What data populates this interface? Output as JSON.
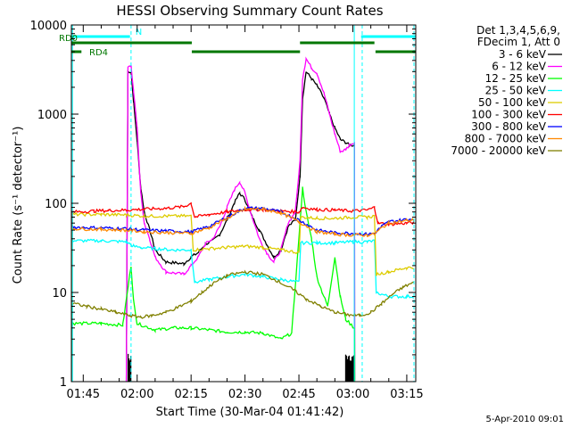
{
  "chart_data": {
    "type": "line",
    "title": "HESSI Observing Summary Count Rates",
    "xlabel": "Start Time (30-Mar-04 01:41:42)",
    "ylabel": "Count Rate (s⁻¹ detector⁻¹)",
    "yscale": "log",
    "ylim": [
      1,
      10000
    ],
    "xlim_minutes": [
      101.7,
      197.5
    ],
    "x_ticks": [
      {
        "label": "01:45",
        "t": 105
      },
      {
        "label": "02:00",
        "t": 120
      },
      {
        "label": "02:15",
        "t": 135
      },
      {
        "label": "02:30",
        "t": 150
      },
      {
        "label": "02:45",
        "t": 165
      },
      {
        "label": "03:00",
        "t": 180
      },
      {
        "label": "03:15",
        "t": 195
      }
    ],
    "y_ticks": [
      "1",
      "10",
      "100",
      "1000",
      "10000"
    ],
    "legend_header": [
      "Det 1,3,4,5,6,9,",
      "FDecim 1, Att 0"
    ],
    "footer_date": "5-Apr-2010 09:01",
    "flags": [
      {
        "label": "N",
        "color": "#00ffff",
        "segments": [
          [
            101.7,
            118.0
          ],
          [
            182.3,
            197.5
          ]
        ]
      },
      {
        "label": "RD0",
        "color": "#007700",
        "segments": [
          [
            101.7,
            135.2
          ],
          [
            165.3,
            186.0
          ]
        ]
      },
      {
        "label": "RD4",
        "color": "#007700",
        "segments": [
          [
            101.7,
            104.5
          ],
          [
            135.2,
            165.3
          ],
          [
            186.3,
            197.5
          ]
        ]
      }
    ],
    "vlines": [
      {
        "t": 102.0,
        "style": "solid"
      },
      {
        "t": 118.3,
        "style": "dashed"
      },
      {
        "t": 180.4,
        "style": "solid"
      },
      {
        "t": 182.6,
        "style": "dashed"
      },
      {
        "t": 197.0,
        "style": "dashed"
      }
    ],
    "series": [
      {
        "name": "3 - 6 keV",
        "color": "#000000",
        "points": [
          [
            117.0,
            0
          ],
          [
            118.3,
            3000
          ],
          [
            119.0,
            1400
          ],
          [
            120.0,
            500
          ],
          [
            121.0,
            150
          ],
          [
            122.0,
            80
          ],
          [
            123.5,
            50
          ],
          [
            125.0,
            30
          ],
          [
            128.0,
            22
          ],
          [
            133.0,
            21
          ],
          [
            135.0,
            25
          ],
          [
            137.0,
            28
          ],
          [
            139.0,
            35
          ],
          [
            141.0,
            38
          ],
          [
            143.0,
            45
          ],
          [
            145.0,
            65
          ],
          [
            147.0,
            100
          ],
          [
            148.5,
            130
          ],
          [
            150.0,
            110
          ],
          [
            152.0,
            70
          ],
          [
            154.0,
            50
          ],
          [
            156.0,
            35
          ],
          [
            158.0,
            25
          ],
          [
            160.0,
            30
          ],
          [
            162.0,
            55
          ],
          [
            164.0,
            65
          ],
          [
            165.3,
            200
          ],
          [
            166.0,
            1500
          ],
          [
            167.0,
            3000
          ],
          [
            168.5,
            2500
          ],
          [
            170.0,
            2100
          ],
          [
            172.0,
            1500
          ],
          [
            173.5,
            1000
          ],
          [
            175.0,
            700
          ],
          [
            176.5,
            520
          ],
          [
            178.0,
            480
          ],
          [
            179.0,
            450
          ],
          [
            180.4,
            450
          ],
          [
            180.5,
            0
          ]
        ]
      },
      {
        "name": "6 - 12 keV",
        "color": "#ff00ff",
        "points": [
          [
            117.0,
            0
          ],
          [
            118.3,
            3500
          ],
          [
            119.0,
            1800
          ],
          [
            120.0,
            700
          ],
          [
            121.0,
            130
          ],
          [
            122.0,
            60
          ],
          [
            123.5,
            40
          ],
          [
            125.0,
            25
          ],
          [
            128.0,
            17
          ],
          [
            133.0,
            16
          ],
          [
            135.0,
            20
          ],
          [
            137.0,
            25
          ],
          [
            139.0,
            35
          ],
          [
            141.0,
            40
          ],
          [
            143.0,
            55
          ],
          [
            145.0,
            90
          ],
          [
            147.0,
            140
          ],
          [
            148.5,
            175
          ],
          [
            150.0,
            130
          ],
          [
            152.0,
            70
          ],
          [
            154.0,
            40
          ],
          [
            156.0,
            28
          ],
          [
            158.0,
            22
          ],
          [
            160.0,
            30
          ],
          [
            162.0,
            60
          ],
          [
            164.0,
            80
          ],
          [
            165.3,
            300
          ],
          [
            166.0,
            2500
          ],
          [
            167.0,
            4200
          ],
          [
            168.5,
            3300
          ],
          [
            170.0,
            2900
          ],
          [
            172.0,
            1700
          ],
          [
            173.5,
            1000
          ],
          [
            175.0,
            600
          ],
          [
            176.5,
            380
          ],
          [
            178.0,
            400
          ],
          [
            179.0,
            450
          ],
          [
            180.4,
            480
          ],
          [
            180.5,
            0
          ]
        ]
      },
      {
        "name": "12 - 25 keV",
        "color": "#00ff00",
        "points": [
          [
            101.7,
            0
          ],
          [
            102.2,
            4.5
          ],
          [
            110.0,
            4.5
          ],
          [
            116.0,
            4.3
          ],
          [
            118.3,
            20
          ],
          [
            119.0,
            8
          ],
          [
            120.0,
            4.5
          ],
          [
            125.0,
            3.8
          ],
          [
            130.0,
            4.0
          ],
          [
            135.0,
            4.0
          ],
          [
            140.0,
            3.8
          ],
          [
            145.0,
            3.6
          ],
          [
            150.0,
            3.6
          ],
          [
            155.0,
            3.5
          ],
          [
            160.0,
            3.0
          ],
          [
            163.0,
            3.5
          ],
          [
            165.3,
            60
          ],
          [
            166.0,
            150
          ],
          [
            167.0,
            80
          ],
          [
            168.5,
            40
          ],
          [
            170.0,
            15
          ],
          [
            171.5,
            10
          ],
          [
            173.0,
            7
          ],
          [
            175.0,
            25
          ],
          [
            176.5,
            9
          ],
          [
            178.0,
            5
          ],
          [
            180.4,
            4
          ],
          [
            180.5,
            0
          ]
        ]
      },
      {
        "name": "25 - 50 keV",
        "color": "#00ffff",
        "points": [
          [
            101.7,
            0
          ],
          [
            102.2,
            38
          ],
          [
            110.0,
            38
          ],
          [
            117.0,
            37
          ],
          [
            119.0,
            33
          ],
          [
            121.0,
            32
          ],
          [
            125.0,
            31
          ],
          [
            130.0,
            30
          ],
          [
            135.0,
            30
          ],
          [
            136.0,
            13
          ],
          [
            140.0,
            14
          ],
          [
            145.0,
            15
          ],
          [
            150.0,
            16
          ],
          [
            155.0,
            15
          ],
          [
            160.0,
            14
          ],
          [
            165.0,
            13
          ],
          [
            165.5,
            36
          ],
          [
            170.0,
            36
          ],
          [
            175.0,
            36
          ],
          [
            180.0,
            37
          ],
          [
            184.0,
            37
          ],
          [
            186.0,
            38
          ],
          [
            186.5,
            10
          ],
          [
            190.0,
            9
          ],
          [
            195.0,
            9
          ],
          [
            197.0,
            9
          ]
        ]
      },
      {
        "name": "50 - 100 keV",
        "color": "#ddcc00",
        "points": [
          [
            101.7,
            0
          ],
          [
            102.2,
            75
          ],
          [
            110.0,
            75
          ],
          [
            117.0,
            74
          ],
          [
            122.0,
            72
          ],
          [
            128.0,
            72
          ],
          [
            135.0,
            72
          ],
          [
            135.6,
            30
          ],
          [
            140.0,
            31
          ],
          [
            145.0,
            32
          ],
          [
            150.0,
            33
          ],
          [
            155.0,
            32
          ],
          [
            160.0,
            30
          ],
          [
            165.0,
            28
          ],
          [
            165.5,
            70
          ],
          [
            170.0,
            68
          ],
          [
            175.0,
            68
          ],
          [
            180.0,
            70
          ],
          [
            184.0,
            70
          ],
          [
            186.0,
            72
          ],
          [
            186.5,
            16
          ],
          [
            190.0,
            17
          ],
          [
            195.0,
            19
          ],
          [
            197.0,
            19
          ]
        ]
      },
      {
        "name": "100 - 300 keV",
        "color": "#ff0000",
        "points": [
          [
            101.7,
            0
          ],
          [
            102.2,
            80
          ],
          [
            108.0,
            82
          ],
          [
            112.0,
            83
          ],
          [
            117.0,
            84
          ],
          [
            122.0,
            86
          ],
          [
            128.0,
            88
          ],
          [
            133.0,
            92
          ],
          [
            135.0,
            100
          ],
          [
            136.0,
            70
          ],
          [
            140.0,
            75
          ],
          [
            145.0,
            80
          ],
          [
            150.0,
            85
          ],
          [
            155.0,
            85
          ],
          [
            160.0,
            82
          ],
          [
            165.0,
            80
          ],
          [
            166.0,
            90
          ],
          [
            170.0,
            85
          ],
          [
            175.0,
            84
          ],
          [
            180.0,
            82
          ],
          [
            184.0,
            84
          ],
          [
            186.0,
            90
          ],
          [
            187.0,
            60
          ],
          [
            190.0,
            58
          ],
          [
            195.0,
            60
          ],
          [
            197.0,
            61
          ]
        ]
      },
      {
        "name": "300 - 800 keV",
        "color": "#0000ff",
        "points": [
          [
            101.7,
            0
          ],
          [
            102.2,
            54
          ],
          [
            110.0,
            53
          ],
          [
            117.0,
            52
          ],
          [
            122.0,
            50
          ],
          [
            128.0,
            49
          ],
          [
            135.0,
            48
          ],
          [
            140.0,
            55
          ],
          [
            145.0,
            70
          ],
          [
            150.0,
            88
          ],
          [
            155.0,
            88
          ],
          [
            160.0,
            80
          ],
          [
            165.0,
            65
          ],
          [
            170.0,
            50
          ],
          [
            175.0,
            47
          ],
          [
            180.0,
            46
          ],
          [
            184.0,
            45
          ],
          [
            186.0,
            46
          ],
          [
            188.0,
            55
          ],
          [
            190.0,
            62
          ],
          [
            195.0,
            66
          ],
          [
            197.0,
            67
          ]
        ]
      },
      {
        "name": "800 - 7000 keV",
        "color": "#ff8800",
        "points": [
          [
            101.7,
            0
          ],
          [
            102.2,
            52
          ],
          [
            110.0,
            51
          ],
          [
            117.0,
            50
          ],
          [
            122.0,
            48
          ],
          [
            128.0,
            47
          ],
          [
            135.0,
            46
          ],
          [
            140.0,
            53
          ],
          [
            145.0,
            68
          ],
          [
            150.0,
            86
          ],
          [
            155.0,
            86
          ],
          [
            160.0,
            78
          ],
          [
            165.0,
            62
          ],
          [
            170.0,
            48
          ],
          [
            175.0,
            45
          ],
          [
            180.0,
            44
          ],
          [
            184.0,
            44
          ],
          [
            186.0,
            45
          ],
          [
            188.0,
            53
          ],
          [
            190.0,
            60
          ],
          [
            195.0,
            64
          ],
          [
            197.0,
            65
          ]
        ]
      },
      {
        "name": "7000 - 20000 keV",
        "color": "#808000",
        "points": [
          [
            101.7,
            0
          ],
          [
            102.2,
            7.5
          ],
          [
            106.0,
            7.0
          ],
          [
            110.0,
            6.5
          ],
          [
            114.0,
            6.0
          ],
          [
            118.0,
            5.5
          ],
          [
            121.0,
            5.3
          ],
          [
            124.0,
            5.5
          ],
          [
            128.0,
            6.0
          ],
          [
            132.0,
            7.0
          ],
          [
            135.0,
            8.0
          ],
          [
            138.0,
            10
          ],
          [
            141.0,
            12.5
          ],
          [
            145.0,
            15.5
          ],
          [
            150.0,
            17
          ],
          [
            155.0,
            16
          ],
          [
            159.0,
            13.5
          ],
          [
            163.0,
            11
          ],
          [
            167.0,
            8.5
          ],
          [
            171.0,
            7.0
          ],
          [
            175.0,
            6.0
          ],
          [
            179.0,
            5.6
          ],
          [
            182.0,
            5.5
          ],
          [
            185.0,
            6.0
          ],
          [
            188.0,
            7.5
          ],
          [
            191.0,
            9.5
          ],
          [
            194.0,
            11.5
          ],
          [
            197.0,
            13
          ]
        ]
      }
    ],
    "detector_off_steps": [
      {
        "color": "#000000",
        "t": [
          117.5,
          118.3,
          178.0,
          180.4
        ],
        "value": 1.7
      }
    ]
  }
}
